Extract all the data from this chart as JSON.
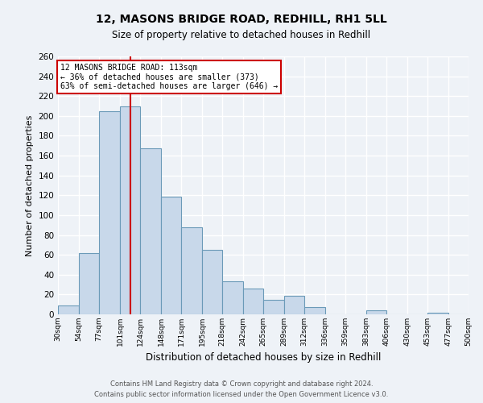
{
  "title": "12, MASONS BRIDGE ROAD, REDHILL, RH1 5LL",
  "subtitle": "Size of property relative to detached houses in Redhill",
  "xlabel": "Distribution of detached houses by size in Redhill",
  "ylabel": "Number of detached properties",
  "bar_color": "#c8d8ea",
  "bar_edge_color": "#6b9ab8",
  "background_color": "#eef2f7",
  "grid_color": "#ffffff",
  "bin_edges": [
    30,
    54,
    77,
    101,
    124,
    148,
    171,
    195,
    218,
    242,
    265,
    289,
    312,
    336,
    359,
    383,
    406,
    430,
    453,
    477,
    500
  ],
  "bin_labels": [
    "30sqm",
    "54sqm",
    "77sqm",
    "101sqm",
    "124sqm",
    "148sqm",
    "171sqm",
    "195sqm",
    "218sqm",
    "242sqm",
    "265sqm",
    "289sqm",
    "312sqm",
    "336sqm",
    "359sqm",
    "383sqm",
    "406sqm",
    "430sqm",
    "453sqm",
    "477sqm",
    "500sqm"
  ],
  "counts": [
    9,
    62,
    205,
    210,
    167,
    119,
    88,
    65,
    33,
    26,
    15,
    19,
    7,
    0,
    0,
    4,
    0,
    0,
    2,
    0
  ],
  "vline_x": 113,
  "vline_color": "#cc0000",
  "annotation_title": "12 MASONS BRIDGE ROAD: 113sqm",
  "annotation_line1": "← 36% of detached houses are smaller (373)",
  "annotation_line2": "63% of semi-detached houses are larger (646) →",
  "annotation_box_color": "#ffffff",
  "annotation_box_edge_color": "#cc0000",
  "ylim": [
    0,
    260
  ],
  "yticks": [
    0,
    20,
    40,
    60,
    80,
    100,
    120,
    140,
    160,
    180,
    200,
    220,
    240,
    260
  ],
  "footer1": "Contains HM Land Registry data © Crown copyright and database right 2024.",
  "footer2": "Contains public sector information licensed under the Open Government Licence v3.0."
}
